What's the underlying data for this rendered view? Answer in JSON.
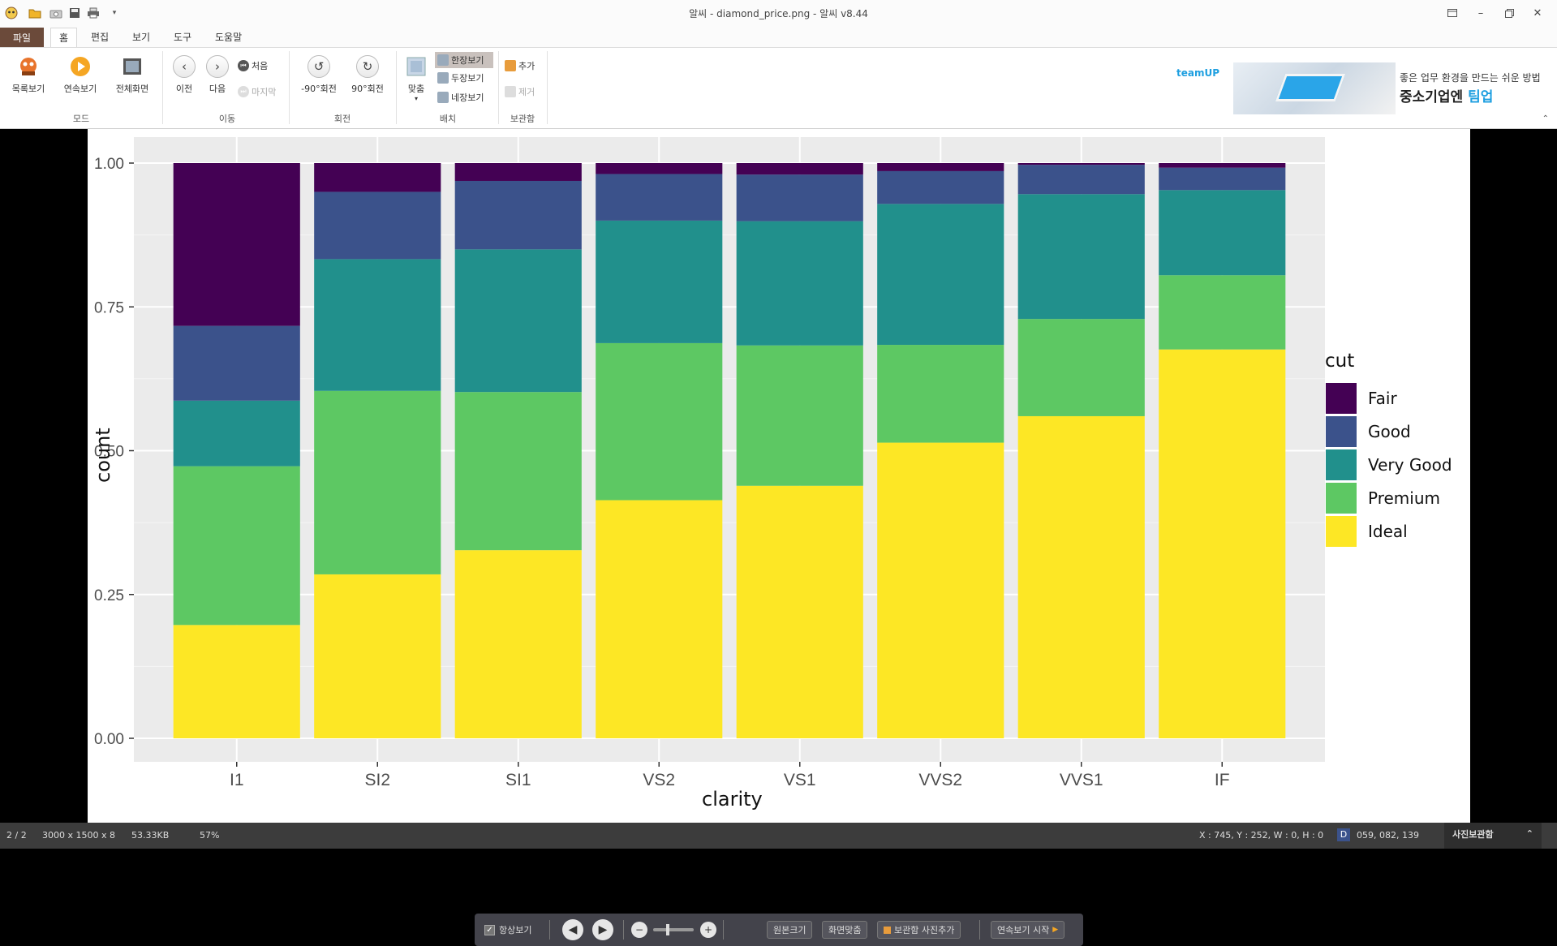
{
  "window": {
    "title": "알씨 - diamond_price.png - 알씨 v8.44"
  },
  "menu": {
    "file": "파일",
    "tabs": [
      "홈",
      "편집",
      "보기",
      "도구",
      "도움말"
    ]
  },
  "ribbon": {
    "mode": {
      "label": "모드",
      "list": "목록보기",
      "slideshow": "연속보기",
      "fullscreen": "전체화면"
    },
    "move": {
      "label": "이동",
      "prev": "이전",
      "next": "다음",
      "first": "처음",
      "last": "마지막"
    },
    "rotate": {
      "label": "회전",
      "left": "-90°회전",
      "right": "90°회전"
    },
    "layout": {
      "label": "배치",
      "fit": "맞춤",
      "one": "한장보기",
      "two": "두장보기",
      "four": "네장보기"
    },
    "album": {
      "label": "보관함",
      "add": "추가",
      "remove": "제거"
    }
  },
  "ad": {
    "logo": "teamUP",
    "line1": "좋은 업무 환경을 만드는 쉬운 방법",
    "line2_a": "중소기업엔 ",
    "line2_b": "팀업"
  },
  "colors": {
    "Fair": "#440154",
    "Good": "#3B528B",
    "Very Good": "#21908C",
    "Premium": "#5DC863",
    "Ideal": "#FDE725"
  },
  "chart_data": {
    "type": "bar",
    "stacked": "fill",
    "xlabel": "clarity",
    "ylabel": "count",
    "ylim": [
      0,
      1
    ],
    "yticks": [
      "0.00",
      "0.25",
      "0.50",
      "0.75",
      "1.00"
    ],
    "categories": [
      "I1",
      "SI2",
      "SI1",
      "VS2",
      "VS1",
      "VVS2",
      "VVS1",
      "IF"
    ],
    "legend_title": "cut",
    "legend_position": "right",
    "series": [
      {
        "name": "Ideal",
        "values": [
          0.197,
          0.285,
          0.327,
          0.414,
          0.439,
          0.514,
          0.56,
          0.676
        ]
      },
      {
        "name": "Premium",
        "values": [
          0.276,
          0.319,
          0.275,
          0.273,
          0.244,
          0.17,
          0.169,
          0.129
        ]
      },
      {
        "name": "Very Good",
        "values": [
          0.114,
          0.229,
          0.248,
          0.213,
          0.216,
          0.245,
          0.217,
          0.148
        ]
      },
      {
        "name": "Good",
        "values": [
          0.13,
          0.117,
          0.119,
          0.081,
          0.081,
          0.057,
          0.051,
          0.039
        ]
      },
      {
        "name": "Fair",
        "values": [
          0.283,
          0.05,
          0.031,
          0.019,
          0.02,
          0.014,
          0.003,
          0.008
        ]
      }
    ]
  },
  "floatbar": {
    "always_on_top": "항상보기",
    "original_size": "원본크기",
    "fit_screen": "화면맞춤",
    "add_album": "보관함 사진추가",
    "start_slideshow": "연속보기 시작"
  },
  "status": {
    "index": "2 / 2",
    "dimensions": "3000 x 1500 x 8",
    "filesize": "53.33KB",
    "zoom": "57%",
    "coords": "X : 745, Y : 252, W : 0, H : 0",
    "color_label": "D",
    "color_value": "059, 082, 139",
    "album": "사진보관함"
  }
}
